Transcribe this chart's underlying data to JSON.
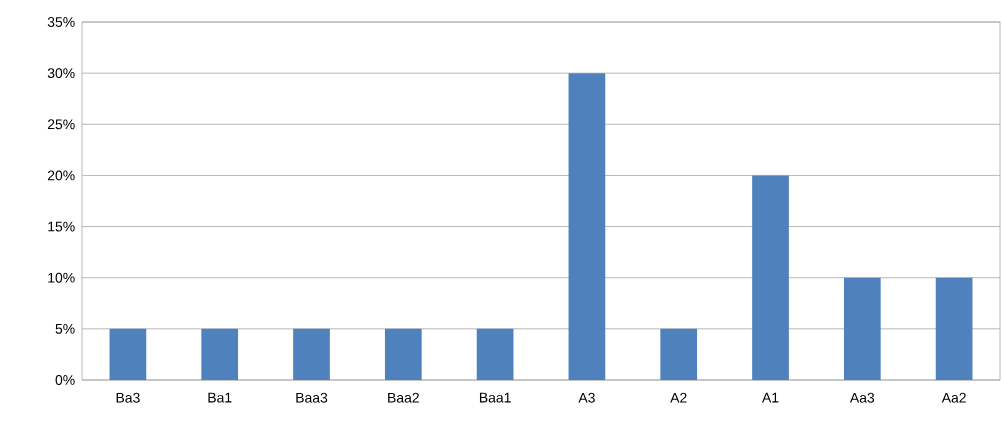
{
  "chart_data": {
    "type": "bar",
    "categories": [
      "Ba3",
      "Ba1",
      "Baa3",
      "Baa2",
      "Baa1",
      "A3",
      "A2",
      "A1",
      "Aa3",
      "Aa2"
    ],
    "values": [
      5,
      5,
      5,
      5,
      5,
      30,
      5,
      20,
      10,
      10
    ],
    "color": "#4f81bd",
    "ylim": [
      0,
      35
    ],
    "yticks": [
      {
        "value": 0,
        "label": "0%"
      },
      {
        "value": 5,
        "label": "5%"
      },
      {
        "value": 10,
        "label": "10%"
      },
      {
        "value": 15,
        "label": "15%"
      },
      {
        "value": 20,
        "label": "20%"
      },
      {
        "value": 25,
        "label": "25%"
      },
      {
        "value": 30,
        "label": "30%"
      },
      {
        "value": 35,
        "label": "35%"
      }
    ],
    "grid": true
  }
}
